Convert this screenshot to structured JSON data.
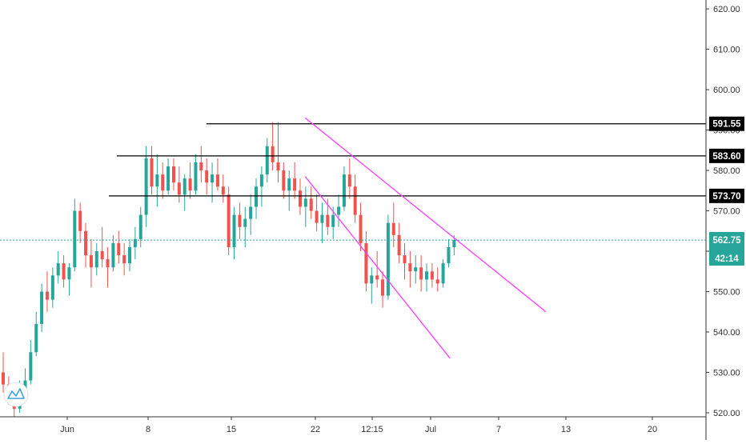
{
  "colors": {
    "up": "#26a69a",
    "down": "#ef5350",
    "channel": "#ff3cff",
    "level": "#000000",
    "current": "#26a69a",
    "logo": "#3ba3d8"
  },
  "logo_icon": "tradingview-cloud-icon",
  "chart_data": {
    "type": "candlestick",
    "y_axis": {
      "ticks": [
        "520.00",
        "530.00",
        "540.00",
        "550.00",
        "560.00",
        "570.00",
        "580.00",
        "590.00",
        "600.00",
        "610.00",
        "620.00"
      ],
      "range": [
        519,
        622
      ]
    },
    "x_axis": {
      "ticks": [
        "Jun",
        "8",
        "15",
        "22",
        "12:15",
        "Jul",
        "7",
        "13",
        "20"
      ]
    },
    "horizontal_levels": [
      {
        "label": "591.55",
        "value": 591.55
      },
      {
        "label": "583.60",
        "value": 583.6
      },
      {
        "label": "573.70",
        "value": 573.7
      }
    ],
    "current_price": {
      "label": "562.75",
      "value": 562.75,
      "countdown": "42:14"
    },
    "trendlines": [
      {
        "name": "upper-channel",
        "points": [
          [
            16.3,
            593.0
          ],
          [
            28.2,
            549.5
          ]
        ]
      },
      {
        "name": "lower-channel",
        "points": [
          [
            16.3,
            578.5
          ],
          [
            24.2,
            533.5
          ]
        ]
      }
    ],
    "candles": [
      [
        0,
        530,
        535,
        525,
        527
      ],
      [
        0.3,
        527,
        529,
        522,
        524
      ],
      [
        0.6,
        524,
        526,
        519,
        521
      ],
      [
        0.9,
        521,
        528,
        520,
        526
      ],
      [
        1.2,
        526,
        531,
        523,
        528
      ],
      [
        1.5,
        528,
        538,
        527,
        535
      ],
      [
        1.8,
        535,
        545,
        534,
        542
      ],
      [
        2.1,
        542,
        552,
        540,
        550
      ],
      [
        2.4,
        550,
        555,
        545,
        548
      ],
      [
        2.7,
        548,
        556,
        546,
        554
      ],
      [
        3.0,
        554,
        560,
        552,
        557
      ],
      [
        3.3,
        557,
        559,
        551,
        553
      ],
      [
        3.6,
        553,
        557,
        549,
        556
      ],
      [
        3.9,
        556,
        573,
        555,
        570
      ],
      [
        4.2,
        570,
        572,
        562,
        565
      ],
      [
        4.5,
        565,
        567,
        556,
        559
      ],
      [
        4.8,
        559,
        563,
        551,
        556
      ],
      [
        5.1,
        556,
        562,
        554,
        560
      ],
      [
        5.4,
        560,
        566,
        556,
        558
      ],
      [
        5.7,
        558,
        561,
        551,
        556
      ],
      [
        6.0,
        556,
        564,
        555,
        562
      ],
      [
        6.3,
        562,
        565,
        557,
        559
      ],
      [
        6.6,
        559,
        562,
        554,
        557
      ],
      [
        6.9,
        557,
        563,
        555,
        561
      ],
      [
        7.2,
        561,
        566,
        558,
        563
      ],
      [
        7.5,
        563,
        571,
        561,
        569
      ],
      [
        7.8,
        569,
        586,
        566,
        583
      ],
      [
        8.1,
        583,
        586,
        574,
        576
      ],
      [
        8.4,
        576,
        584,
        571,
        579
      ],
      [
        8.7,
        579,
        582,
        573,
        575
      ],
      [
        9.0,
        575,
        583,
        574,
        581
      ],
      [
        9.3,
        581,
        583,
        575,
        577
      ],
      [
        9.6,
        577,
        581,
        572,
        574
      ],
      [
        9.9,
        574,
        579,
        570,
        578
      ],
      [
        10.2,
        578,
        582,
        573,
        575
      ],
      [
        10.5,
        575,
        584,
        574,
        582
      ],
      [
        10.8,
        582,
        586,
        577,
        580
      ],
      [
        11.1,
        580,
        583,
        574,
        577
      ],
      [
        11.4,
        577,
        582,
        572,
        579
      ],
      [
        11.7,
        579,
        583,
        575,
        576
      ],
      [
        12.0,
        576,
        579,
        572,
        574
      ],
      [
        12.3,
        574,
        576,
        559,
        561
      ],
      [
        12.6,
        561,
        571,
        558,
        569
      ],
      [
        12.9,
        569,
        572,
        563,
        566
      ],
      [
        13.2,
        566,
        571,
        561,
        568
      ],
      [
        13.5,
        568,
        574,
        564,
        571
      ],
      [
        13.8,
        571,
        578,
        568,
        576
      ],
      [
        14.1,
        576,
        581,
        571,
        579
      ],
      [
        14.4,
        579,
        588,
        577,
        586
      ],
      [
        14.7,
        586,
        592,
        580,
        582
      ],
      [
        15.0,
        582,
        592,
        577,
        580
      ],
      [
        15.3,
        580,
        582,
        573,
        575
      ],
      [
        15.6,
        575,
        580,
        570,
        578
      ],
      [
        15.9,
        578,
        582,
        573,
        575
      ],
      [
        16.2,
        575,
        578,
        569,
        571
      ],
      [
        16.5,
        571,
        576,
        566,
        573
      ],
      [
        16.8,
        573,
        576,
        568,
        570
      ],
      [
        17.1,
        570,
        574,
        565,
        567
      ],
      [
        17.4,
        567,
        572,
        562,
        569
      ],
      [
        17.7,
        569,
        573,
        564,
        566
      ],
      [
        18.0,
        566,
        571,
        563,
        569
      ],
      [
        18.3,
        569,
        574,
        566,
        571
      ],
      [
        18.6,
        571,
        581,
        570,
        579
      ],
      [
        18.9,
        579,
        583,
        573,
        576
      ],
      [
        19.2,
        576,
        579,
        567,
        569
      ],
      [
        19.5,
        569,
        572,
        560,
        562
      ],
      [
        19.8,
        562,
        565,
        550,
        552
      ],
      [
        20.1,
        552,
        556,
        547,
        554
      ],
      [
        20.4,
        554,
        560,
        551,
        553
      ],
      [
        20.7,
        553,
        555,
        546,
        549
      ],
      [
        21.0,
        549,
        569,
        548,
        567
      ],
      [
        21.3,
        567,
        572,
        561,
        564
      ],
      [
        21.6,
        564,
        567,
        557,
        559
      ],
      [
        21.9,
        559,
        562,
        553,
        557
      ],
      [
        22.2,
        557,
        560,
        551,
        555
      ],
      [
        22.5,
        555,
        559,
        552,
        556
      ],
      [
        22.8,
        556,
        559,
        550,
        553
      ],
      [
        23.1,
        553,
        557,
        550,
        555
      ],
      [
        23.4,
        555,
        557,
        551,
        553
      ],
      [
        23.7,
        553,
        556,
        550,
        552
      ],
      [
        24.0,
        552,
        558,
        551,
        557
      ],
      [
        24.3,
        557,
        563,
        556,
        561
      ],
      [
        24.6,
        561,
        564,
        559,
        562.75
      ]
    ]
  }
}
